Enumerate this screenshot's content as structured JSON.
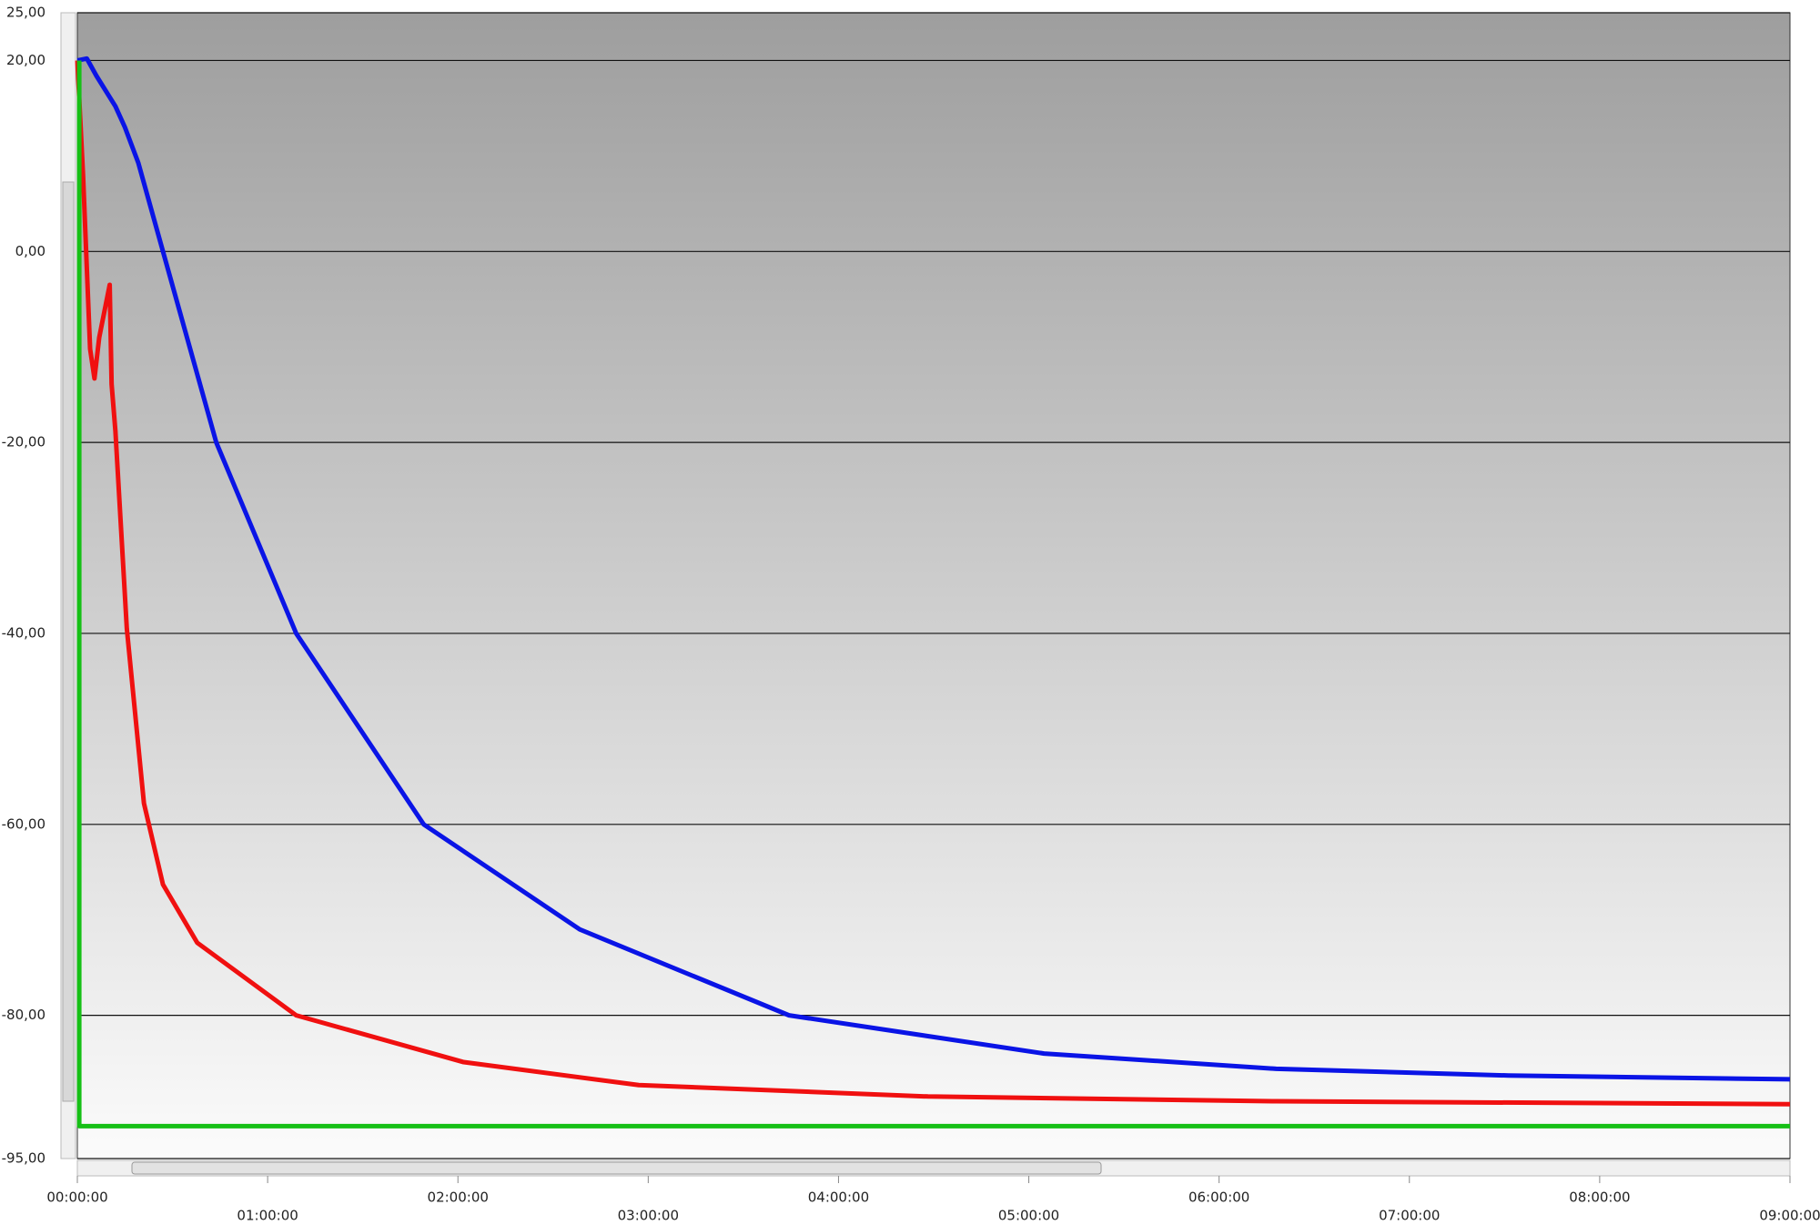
{
  "chart_data": {
    "type": "line",
    "xlim": [
      0,
      9
    ],
    "ylim": [
      -95,
      25
    ],
    "xticks": [
      {
        "value": 0,
        "label": "00:00:00"
      },
      {
        "value": 1,
        "label": "01:00:00"
      },
      {
        "value": 2,
        "label": "02:00:00"
      },
      {
        "value": 3,
        "label": "03:00:00"
      },
      {
        "value": 4,
        "label": "04:00:00"
      },
      {
        "value": 5,
        "label": "05:00:00"
      },
      {
        "value": 6,
        "label": "06:00:00"
      },
      {
        "value": 7,
        "label": "07:00:00"
      },
      {
        "value": 8,
        "label": "08:00:00"
      },
      {
        "value": 9,
        "label": "09:00:00"
      }
    ],
    "yticks": [
      {
        "value": 25,
        "label": "25,00"
      },
      {
        "value": 20,
        "label": "20,00"
      },
      {
        "value": 0,
        "label": "0,00"
      },
      {
        "value": -20,
        "label": "-20,00"
      },
      {
        "value": -40,
        "label": "-40,00"
      },
      {
        "value": -60,
        "label": "-60,00"
      },
      {
        "value": -80,
        "label": "-80,00"
      },
      {
        "value": -95,
        "label": "-95,00"
      }
    ],
    "grid": true,
    "series": [
      {
        "color": "#0a14e6",
        "x": [
          0,
          0.05,
          0.1,
          0.2,
          0.25,
          0.32,
          0.45,
          0.73,
          1.15,
          1.82,
          2.64,
          3.74,
          5.08,
          6.3,
          7.52,
          9
        ],
        "values": [
          20,
          20.2,
          18.4,
          15.2,
          13.0,
          9.3,
          0,
          -20,
          -40,
          -60,
          -71,
          -80,
          -84,
          -85.6,
          -86.3,
          -86.7
        ]
      },
      {
        "color": "#f01010",
        "x": [
          0,
          0.03,
          0.067,
          0.09,
          0.115,
          0.17,
          0.18,
          0.2,
          0.26,
          0.35,
          0.45,
          0.63,
          1.15,
          2.03,
          2.95,
          4.47,
          6.3,
          9
        ],
        "values": [
          20,
          8,
          -10.2,
          -13.3,
          -9,
          -3.5,
          -13.9,
          -18.8,
          -39.5,
          -57.8,
          -66.3,
          -72.4,
          -80,
          -84.9,
          -87.3,
          -88.5,
          -89.0,
          -89.3
        ]
      },
      {
        "color": "#16c016",
        "x": [
          0.01,
          0.01,
          9
        ],
        "values": [
          20,
          -91.6,
          -91.6
        ]
      }
    ]
  }
}
